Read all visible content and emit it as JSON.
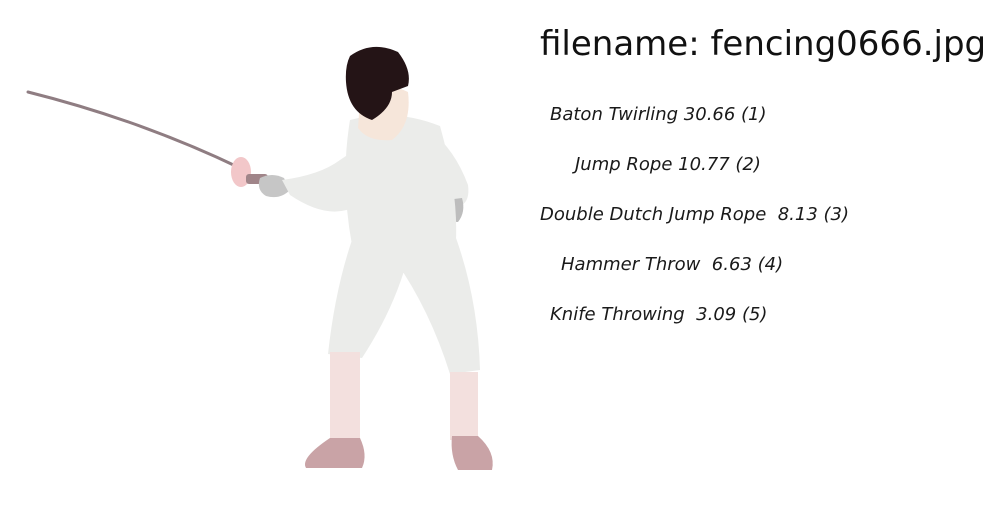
{
  "filename_text": "filename: fencing0666.jpg",
  "predictions": [
    {
      "label": "Baton Twirling 30.66 (1)"
    },
    {
      "label": "Jump Rope 10.77 (2)"
    },
    {
      "label": "Double Dutch Jump Rope  8.13 (3)"
    },
    {
      "label": "Hammer Throw  6.63 (4)"
    },
    {
      "label": "Knife Throwing  3.09 (5)"
    }
  ],
  "colors": {
    "suit": "#ebecea",
    "mask": "#241416",
    "skin": "#f6e6da",
    "shoes": "#c9a3a6",
    "socks": "#f3e0de",
    "blade": "#8f7d82"
  }
}
